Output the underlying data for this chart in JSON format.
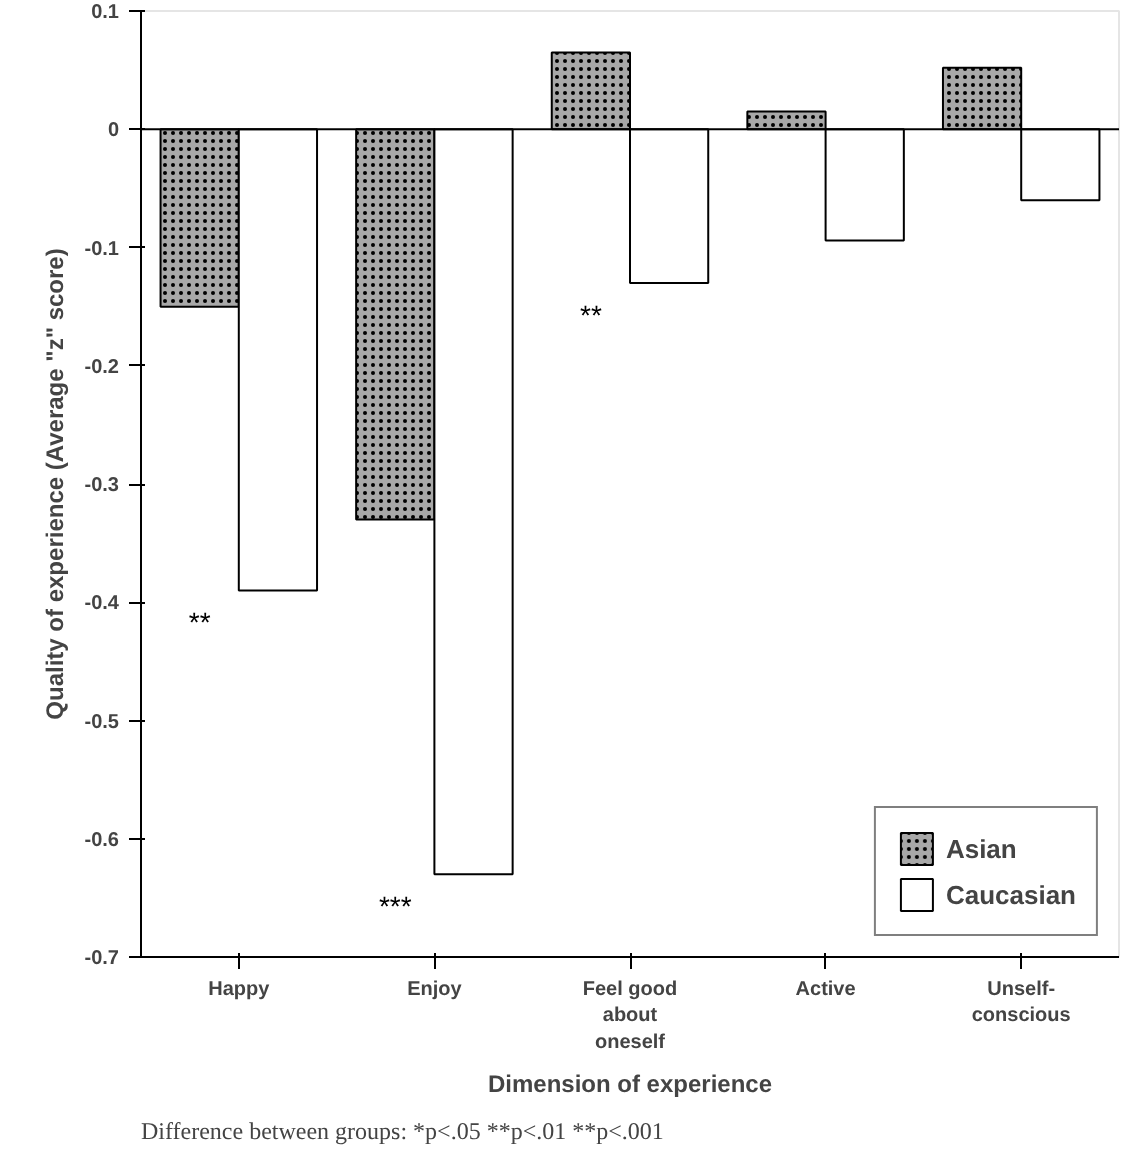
{
  "chart_data": {
    "type": "bar",
    "xlabel": "Dimension of experience",
    "ylabel": "Quality of experience (Average \"z\" score)",
    "categories": [
      "Happy",
      "Enjoy",
      "Feel good\nabout\noneself",
      "Active",
      "Unself-\nconscious"
    ],
    "series": [
      {
        "name": "Asian",
        "color": "#a8a8a8",
        "values": [
          -0.15,
          -0.33,
          0.065,
          0.015,
          0.052
        ]
      },
      {
        "name": "Caucasian",
        "color": "#ffffff",
        "values": [
          -0.39,
          -0.63,
          -0.13,
          -0.094,
          -0.06
        ]
      }
    ],
    "ylim": [
      -0.7,
      0.1
    ],
    "yticks": [
      0.1,
      0,
      -0.1,
      -0.2,
      -0.3,
      -0.4,
      -0.5,
      -0.6,
      -0.7
    ],
    "grid": false,
    "legend": "bottom right",
    "ref_lines": [
      {
        "axis": "y",
        "value": 0
      }
    ],
    "annotations": [
      {
        "text": "**",
        "x": "Happy",
        "y": -0.39
      },
      {
        "text": "***",
        "x": "Enjoy",
        "y": -0.63
      },
      {
        "text": "**",
        "x": "Feel good\nabout\noneself",
        "y": -0.13
      },
      "Difference between groups: *p<.05 **p<.01 **p<.001"
    ]
  }
}
